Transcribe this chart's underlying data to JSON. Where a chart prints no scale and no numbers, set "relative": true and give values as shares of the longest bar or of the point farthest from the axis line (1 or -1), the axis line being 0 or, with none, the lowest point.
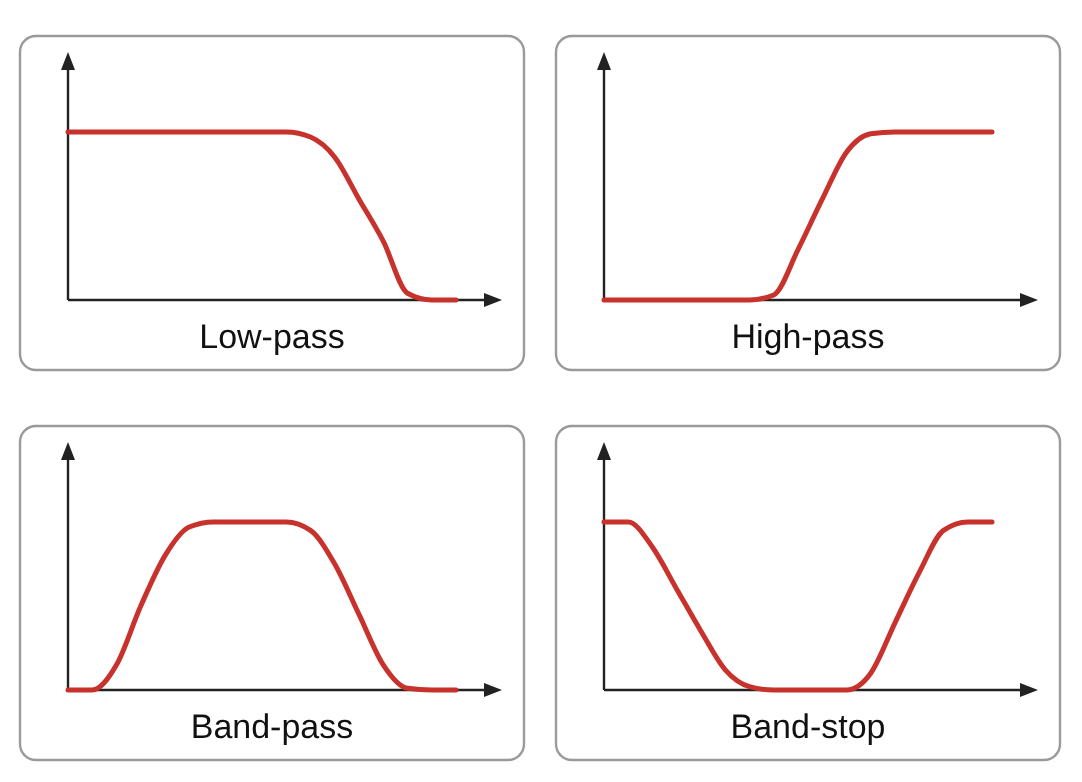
{
  "chart_data": [
    {
      "type": "line",
      "xlabel": "Low-pass",
      "relative": true,
      "categories": [
        null,
        null,
        null,
        null,
        null,
        null,
        null,
        null,
        null,
        null,
        null,
        null,
        null,
        null,
        null,
        null,
        null
      ],
      "series": [
        {
          "color": "#c8322d",
          "values": [
            1,
            1,
            1,
            1,
            1,
            1,
            1,
            1,
            1,
            1,
            0.97,
            0.85,
            0.6,
            0.35,
            0.04,
            0,
            0
          ]
        }
      ]
    },
    {
      "type": "line",
      "xlabel": "High-pass",
      "relative": true,
      "categories": [
        null,
        null,
        null,
        null,
        null,
        null,
        null,
        null,
        null,
        null,
        null,
        null,
        null,
        null,
        null,
        null,
        null
      ],
      "series": [
        {
          "color": "#c8322d",
          "values": [
            0,
            0,
            0,
            0,
            0,
            0,
            0,
            0.03,
            0.3,
            0.6,
            0.88,
            0.99,
            1,
            1,
            1,
            1,
            1
          ]
        }
      ]
    },
    {
      "type": "line",
      "xlabel": "Band-pass",
      "relative": true,
      "categories": [
        null,
        null,
        null,
        null,
        null,
        null,
        null,
        null,
        null,
        null,
        null,
        null,
        null,
        null,
        null,
        null,
        null
      ],
      "series": [
        {
          "color": "#c8322d",
          "values": [
            0,
            0,
            0.15,
            0.5,
            0.8,
            0.97,
            1,
            1,
            1,
            1,
            0.95,
            0.75,
            0.45,
            0.15,
            0.01,
            0,
            0
          ]
        }
      ]
    },
    {
      "type": "line",
      "xlabel": "Band-stop",
      "relative": true,
      "categories": [
        null,
        null,
        null,
        null,
        null,
        null,
        null,
        null,
        null,
        null,
        null,
        null,
        null,
        null,
        null,
        null,
        null
      ],
      "series": [
        {
          "color": "#c8322d",
          "values": [
            1,
            1,
            0.85,
            0.6,
            0.35,
            0.12,
            0.02,
            0,
            0,
            0,
            0,
            0.1,
            0.4,
            0.7,
            0.95,
            1,
            1
          ]
        }
      ]
    }
  ]
}
